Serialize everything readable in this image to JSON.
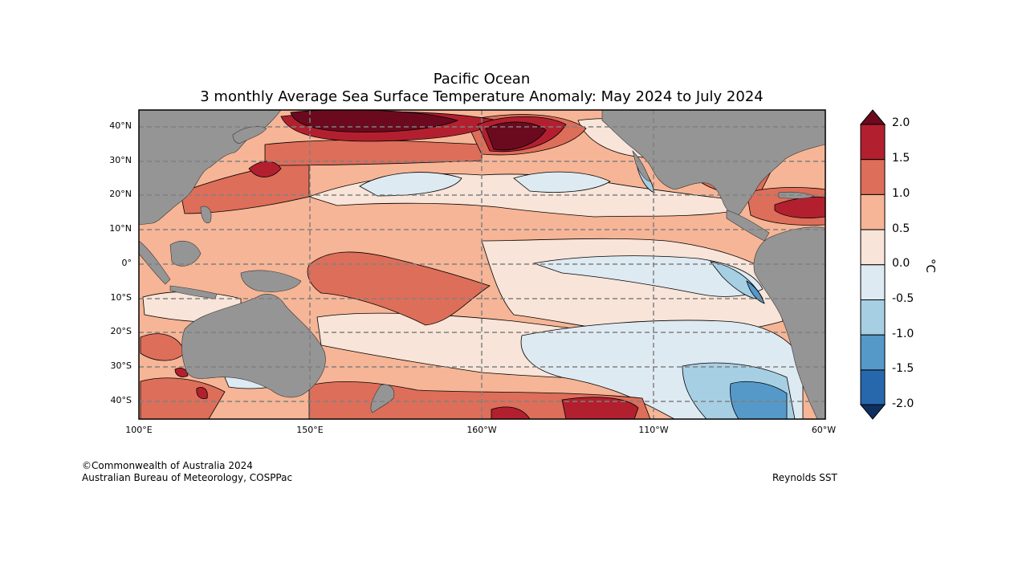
{
  "title": {
    "line1": "Pacific Ocean",
    "line2": "3 monthly Average Sea Surface Temperature Anomaly: May 2024 to July 2024"
  },
  "axes": {
    "lat_ticks": [
      "40°N",
      "30°N",
      "20°N",
      "10°N",
      "0°",
      "10°S",
      "20°S",
      "30°S",
      "40°S"
    ],
    "lon_ticks": [
      "100°E",
      "150°E",
      "160°W",
      "110°W",
      "60°W"
    ]
  },
  "colorbar": {
    "label": "°C",
    "ticks": [
      "2.0",
      "1.5",
      "1.0",
      "0.5",
      "0.0",
      "-0.5",
      "-1.0",
      "-1.5",
      "-2.0"
    ],
    "colors": [
      "#6b0a1e",
      "#b2202f",
      "#dd6e5a",
      "#f6b596",
      "#f8e4d8",
      "#deeaf2",
      "#a7cfe4",
      "#5599c8",
      "#2768ad",
      "#0f305f"
    ]
  },
  "footer": {
    "copyright": "©Commonwealth of Australia 2024",
    "agency": "Australian Bureau of Meteorology, COSPPac",
    "source": "Reynolds SST"
  },
  "colors": {
    "land": "#959595",
    "grid": "#808080"
  }
}
